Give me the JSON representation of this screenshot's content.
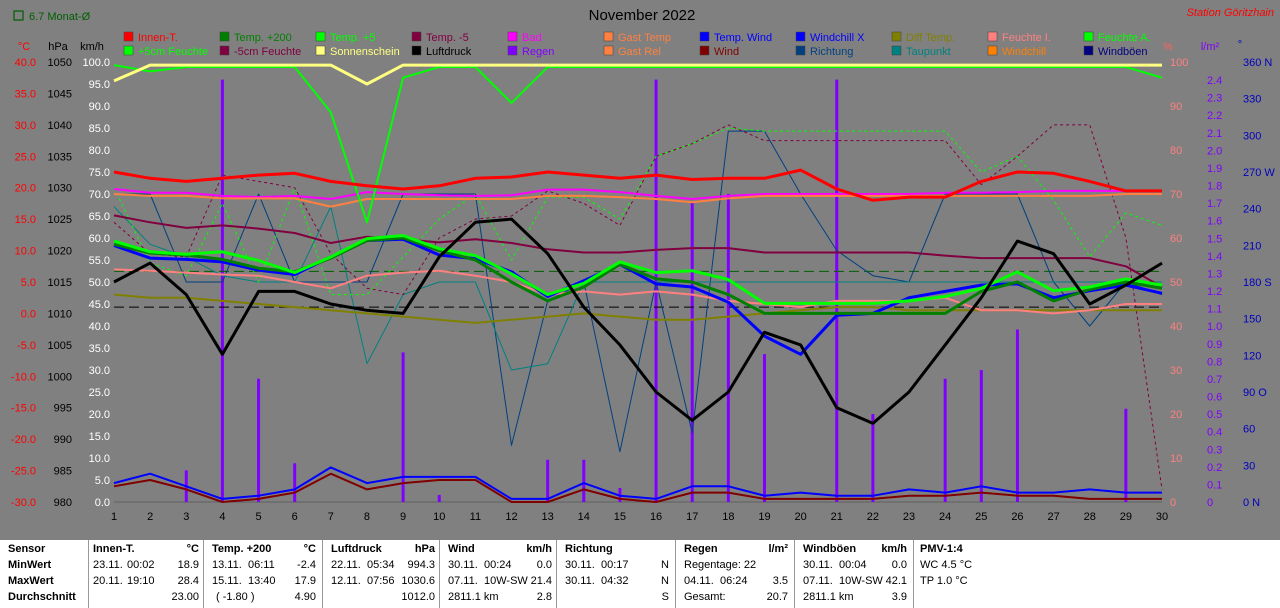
{
  "header": {
    "title": "November 2022",
    "station": "Station Göritzhain",
    "monat_label": "6.7 Monat-Ø"
  },
  "axes": {
    "temp_unit": "°C",
    "pressure_unit": "hPa",
    "wind_unit": "km/h",
    "percent_unit": "%",
    "rain_unit": "l/m²",
    "dir_unit": "°",
    "temp_ticks": [
      "40.0",
      "35.0",
      "30.0",
      "25.0",
      "20.0",
      "15.0",
      "10.0",
      "5.0",
      "0.0",
      "-5.0",
      "-10.0",
      "-15.0",
      "-20.0",
      "-25.0",
      "-30.0"
    ],
    "pressure_ticks": [
      "1050",
      "1045",
      "1040",
      "1035",
      "1030",
      "1025",
      "1020",
      "1015",
      "1010",
      "1005",
      "1000",
      "995",
      "990",
      "985",
      "980"
    ],
    "wind_ticks": [
      "100.0",
      "95.0",
      "90.0",
      "85.0",
      "80.0",
      "75.0",
      "70.0",
      "65.0",
      "60.0",
      "55.0",
      "50.0",
      "45.0",
      "40.0",
      "35.0",
      "30.0",
      "25.0",
      "20.0",
      "15.0",
      "10.0",
      "5.0",
      "0.0"
    ],
    "percent_ticks": [
      "100",
      "90",
      "80",
      "70",
      "60",
      "50",
      "40",
      "30",
      "20",
      "10",
      "0"
    ],
    "rain_ticks": [
      "2.4",
      "2.3",
      "2.2",
      "2.1",
      "2.0",
      "1.9",
      "1.8",
      "1.7",
      "1.6",
      "1.5",
      "1.4",
      "1.3",
      "1.2",
      "1.1",
      "1.0",
      "0.9",
      "0.8",
      "0.7",
      "0.6",
      "0.5",
      "0.4",
      "0.3",
      "0.2",
      "0.1",
      "0"
    ],
    "dir_ticks": [
      "360 N",
      "330",
      "300",
      "270 W",
      "240",
      "210",
      "180 S",
      "150",
      "120",
      "90 O",
      "60",
      "30",
      "0 N"
    ],
    "x_ticks": [
      "1",
      "2",
      "3",
      "4",
      "5",
      "6",
      "7",
      "8",
      "9",
      "10",
      "11",
      "12",
      "13",
      "14",
      "15",
      "16",
      "17",
      "18",
      "19",
      "20",
      "21",
      "22",
      "23",
      "24",
      "25",
      "26",
      "27",
      "28",
      "29",
      "30"
    ]
  },
  "legend": [
    {
      "label": "Innen-T.",
      "color": "#ff0000"
    },
    {
      "label": "Temp. +200",
      "color": "#008000"
    },
    {
      "label": "Temp. +5",
      "color": "#00ff00"
    },
    {
      "label": "Temp. -5",
      "color": "#800040"
    },
    {
      "label": "Bad",
      "color": "#ff00ff"
    },
    {
      "label": "Gast Temp",
      "color": "#ff8040"
    },
    {
      "label": "Temp. Wind",
      "color": "#0000ff"
    },
    {
      "label": "Windchill X",
      "color": "#0000ff"
    },
    {
      "label": "Diff Temp.",
      "color": "#808000"
    },
    {
      "label": "Feuchte I.",
      "color": "#ff8080"
    },
    {
      "label": "Feuchte A.",
      "color": "#00ff00"
    },
    {
      "label": "+5cm Feuchte",
      "color": "#00ff00"
    },
    {
      "label": "-5cm Feuchte",
      "color": "#800040"
    },
    {
      "label": "Sonnenschein",
      "color": "#ffff80"
    },
    {
      "label": "Luftdruck",
      "color": "#000000"
    },
    {
      "label": "Regen",
      "color": "#8000ff"
    },
    {
      "label": "Gast Rel",
      "color": "#ff8040"
    },
    {
      "label": "Wind",
      "color": "#800000"
    },
    {
      "label": "Richtung",
      "color": "#004080"
    },
    {
      "label": "Taupunkt",
      "color": "#008080"
    },
    {
      "label": "Windchill",
      "color": "#ff8000"
    },
    {
      "label": "Windböen",
      "color": "#000080"
    }
  ],
  "chart_data": {
    "type": "line",
    "title": "November 2022",
    "x": [
      1,
      2,
      3,
      4,
      5,
      6,
      7,
      8,
      9,
      10,
      11,
      12,
      13,
      14,
      15,
      16,
      17,
      18,
      19,
      20,
      21,
      22,
      23,
      24,
      25,
      26,
      27,
      28,
      29,
      30
    ],
    "xlim": [
      1,
      30
    ],
    "temp_ylim": [
      -30,
      40
    ],
    "pressure_ylim": [
      980,
      1050
    ],
    "series": [
      {
        "name": "Innen-T.",
        "color": "#ff0000",
        "axis": "temp",
        "width": 3,
        "values": [
          22.5,
          21.5,
          21.0,
          21.5,
          22.0,
          22.3,
          21.0,
          20.3,
          19.8,
          20.3,
          21.5,
          21.7,
          22.5,
          22.0,
          21.5,
          22.0,
          21.3,
          21.5,
          21.5,
          22.8,
          19.8,
          18.0,
          18.5,
          18.5,
          21.0,
          22.5,
          22.3,
          21.0,
          19.5,
          19.5
        ]
      },
      {
        "name": "Bad",
        "color": "#ff00ff",
        "axis": "temp",
        "width": 2,
        "values": [
          19.8,
          19.2,
          19.2,
          18.7,
          18.5,
          18.7,
          18.2,
          19.3,
          19.0,
          18.8,
          18.7,
          18.8,
          19.7,
          19.7,
          19.3,
          18.7,
          18.2,
          18.7,
          19.0,
          19.0,
          19.0,
          19.0,
          19.0,
          19.2,
          19.2,
          19.3,
          19.5,
          19.5,
          19.5,
          19.5
        ]
      },
      {
        "name": "Windchill",
        "color": "#ff8040",
        "axis": "temp",
        "width": 2,
        "values": [
          19.0,
          18.7,
          18.7,
          18.3,
          18.3,
          18.3,
          17.0,
          18.2,
          18.2,
          18.2,
          18.2,
          18.2,
          18.7,
          18.7,
          18.5,
          18.2,
          17.7,
          18.3,
          18.7,
          18.7,
          18.7,
          18.7,
          18.7,
          18.7,
          18.7,
          18.7,
          18.7,
          18.7,
          19.0,
          19.0
        ]
      },
      {
        "name": "Temp. Wind",
        "color": "#0000ff",
        "axis": "temp",
        "width": 3,
        "values": [
          10.8,
          8.8,
          8.6,
          8.2,
          6.9,
          6.2,
          9.0,
          11.6,
          11.8,
          9.3,
          8.7,
          6.6,
          2.7,
          5.2,
          7.8,
          4.7,
          4.2,
          1.8,
          -3.6,
          -6.5,
          -0.3,
          0.0,
          2.5,
          3.5,
          4.5,
          4.7,
          2.5,
          3.6,
          4.5,
          3.2
        ]
      },
      {
        "name": "Temp. +200",
        "color": "#008000",
        "axis": "temp",
        "width": 3,
        "values": [
          11.0,
          9.6,
          9.3,
          8.6,
          7.2,
          6.6,
          8.8,
          11.6,
          12.0,
          10.0,
          8.5,
          5.0,
          2.0,
          4.2,
          7.8,
          5.5,
          5.0,
          3.0,
          0.0,
          0.0,
          0.0,
          0.0,
          0.0,
          0.0,
          3.5,
          5.0,
          2.0,
          3.8,
          5.0,
          4.0
        ]
      },
      {
        "name": "Temp. +5",
        "color": "#00ff00",
        "axis": "temp",
        "width": 3,
        "values": [
          11.5,
          9.8,
          9.4,
          9.8,
          8.4,
          6.5,
          9.0,
          11.9,
          12.4,
          10.3,
          9.2,
          6.3,
          3.0,
          4.8,
          8.2,
          6.5,
          6.8,
          5.4,
          1.6,
          1.6,
          1.6,
          1.6,
          2.0,
          2.7,
          4.0,
          6.6,
          3.6,
          4.2,
          5.5,
          4.5
        ]
      },
      {
        "name": "Diff Temp.",
        "color": "#808000",
        "axis": "temp",
        "width": 2,
        "values": [
          3.0,
          2.5,
          2.5,
          2.0,
          1.5,
          1.0,
          0.5,
          0.0,
          -0.5,
          -1.0,
          -1.5,
          -1.0,
          -0.5,
          0.0,
          -0.5,
          -1.0,
          -1.0,
          -0.5,
          0.0,
          0.5,
          1.0,
          1.0,
          0.5,
          0.5,
          0.5,
          0.5,
          0.5,
          0.5,
          0.5,
          0.5
        ]
      },
      {
        "name": "Temp. -5",
        "color": "#800040",
        "axis": "temp",
        "width": 2,
        "values": [
          15.6,
          14.5,
          13.6,
          14.0,
          13.5,
          12.8,
          11.2,
          12.2,
          11.8,
          11.3,
          11.8,
          11.2,
          10.2,
          9.7,
          9.7,
          10.1,
          10.4,
          10.4,
          9.7,
          9.7,
          9.7,
          9.7,
          9.7,
          9.2,
          8.8,
          8.8,
          8.8,
          8.8,
          7.5,
          4.2
        ]
      },
      {
        "name": "Luftdruck",
        "color": "#000000",
        "axis": "pressure",
        "width": 3,
        "values": [
          1015.0,
          1018.0,
          1013.0,
          1003.5,
          1013.5,
          1013.5,
          1011.5,
          1010.5,
          1010.0,
          1019.0,
          1024.5,
          1025.0,
          1019.5,
          1011.0,
          1005.0,
          997.5,
          993.0,
          997.5,
          1007.0,
          1005.0,
          995.0,
          992.5,
          997.5,
          1005.0,
          1012.5,
          1021.5,
          1019.5,
          1011.5,
          1014.5,
          1018.0
        ]
      },
      {
        "name": "Sonnenschein",
        "color": "#ffff80",
        "axis": "temp",
        "width": 3,
        "values": [
          37.0,
          39.5,
          39.5,
          39.5,
          39.5,
          39.5,
          39.5,
          36.5,
          39.5,
          39.5,
          39.5,
          39.5,
          39.5,
          39.5,
          39.5,
          39.5,
          39.5,
          39.5,
          39.5,
          39.5,
          39.5,
          39.5,
          39.5,
          39.5,
          39.5,
          39.5,
          39.5,
          39.5,
          39.5,
          39.5
        ]
      },
      {
        "name": "Feuchte A.",
        "color": "#00ff00",
        "axis": "temp",
        "width": 2,
        "values": [
          39.5,
          38.5,
          39.2,
          39.2,
          39.2,
          39.2,
          32.0,
          14.5,
          37.5,
          39.2,
          39.2,
          33.5,
          39.2,
          39.2,
          39.2,
          39.2,
          39.2,
          39.2,
          39.2,
          39.2,
          39.2,
          39.2,
          39.2,
          39.2,
          39.2,
          39.2,
          39.2,
          39.2,
          39.2,
          37.5
        ]
      },
      {
        "name": "Richtung",
        "color": "#004080",
        "axis": "temp",
        "width": 1,
        "values": [
          19.0,
          19.0,
          5.0,
          5.0,
          19.0,
          5.0,
          5.0,
          5.0,
          19.0,
          19.0,
          19.0,
          -21.0,
          2.0,
          5.0,
          -22.0,
          5.0,
          -19.0,
          29.0,
          29.0,
          19.0,
          10.0,
          6.0,
          5.0,
          19.0,
          19.0,
          19.0,
          5.0,
          -2.0,
          5.0,
          3.0
        ]
      },
      {
        "name": "Taupunkt",
        "color": "#008080",
        "axis": "temp",
        "width": 1,
        "values": [
          17.0,
          11.0,
          9.0,
          6.0,
          5.0,
          5.0,
          17.0,
          -8.0,
          3.0,
          5.0,
          5.0,
          -9.0,
          -8.0,
          5.0,
          5.0,
          5.0,
          5.0,
          5.0,
          5.0,
          5.0,
          5.0,
          5.0,
          5.0,
          5.0,
          5.0,
          5.0,
          5.0,
          5.0,
          5.0,
          5.0
        ]
      },
      {
        "name": "Feuchte I.",
        "color": "#ff8080",
        "axis": "temp",
        "width": 2,
        "values": [
          7.0,
          6.8,
          6.5,
          6.2,
          6.0,
          5.0,
          4.0,
          6.0,
          6.5,
          6.8,
          6.0,
          5.0,
          3.0,
          3.5,
          3.0,
          3.5,
          3.0,
          2.0,
          1.5,
          1.0,
          2.0,
          2.0,
          2.0,
          2.5,
          0.5,
          0.5,
          0.0,
          0.5,
          1.5,
          1.5
        ]
      },
      {
        "name": "+5cm Feuchte",
        "color": "#00ff00",
        "axis": "temp",
        "width": 1,
        "dashed": true,
        "values": [
          20.0,
          8.0,
          6.0,
          17.5,
          5.0,
          20.0,
          3.0,
          3.0,
          9.0,
          15.0,
          19.0,
          8.5,
          18.5,
          18.5,
          15.0,
          25.0,
          27.0,
          29.5,
          29.0,
          29.0,
          29.0,
          29.0,
          29.0,
          29.0,
          22.5,
          25.0,
          18.0,
          9.0,
          16.0,
          14.0
        ]
      },
      {
        "name": "-5cm Feuchte",
        "color": "#800040",
        "axis": "temp",
        "width": 1,
        "dashed": true,
        "values": [
          14.5,
          9.5,
          9.0,
          22.0,
          21.0,
          20.0,
          9.5,
          4.0,
          3.0,
          12.0,
          15.0,
          15.5,
          19.5,
          17.5,
          14.0,
          25.0,
          27.0,
          30.0,
          27.5,
          27.5,
          27.5,
          27.5,
          27.5,
          27.5,
          20.5,
          25.0,
          30.0,
          30.0,
          12.0,
          -28.0
        ]
      },
      {
        "name": "Wind",
        "color": "#800000",
        "axis": "temp",
        "width": 2,
        "values": [
          -27.5,
          -26.5,
          -28.0,
          -30.0,
          -29.5,
          -28.5,
          -25.5,
          -28.0,
          -27.0,
          -26.5,
          -26.5,
          -30.0,
          -30.0,
          -28.0,
          -29.5,
          -30.0,
          -28.5,
          -28.5,
          -29.5,
          -29.5,
          -29.5,
          -29.5,
          -29.0,
          -29.0,
          -28.5,
          -29.0,
          -29.0,
          -29.5,
          -29.5,
          -29.5
        ]
      },
      {
        "name": "Windböen",
        "color": "#0000ff",
        "axis": "temp",
        "width": 2,
        "values": [
          -27.0,
          -25.5,
          -27.5,
          -29.5,
          -29.0,
          -28.0,
          -24.5,
          -27.0,
          -26.0,
          -26.0,
          -26.0,
          -29.5,
          -29.5,
          -27.0,
          -29.0,
          -29.5,
          -27.5,
          -27.5,
          -29.0,
          -28.5,
          -29.0,
          -29.0,
          -28.0,
          -28.5,
          -27.5,
          -28.5,
          -28.5,
          -28.0,
          -28.5,
          -28.5
        ]
      }
    ],
    "rain": {
      "name": "Regen",
      "color": "#8000ff",
      "values": [
        0,
        0,
        0.18,
        2.4,
        0.7,
        0.22,
        0,
        0,
        0.85,
        0.04,
        0,
        0,
        0.24,
        0.24,
        0.08,
        2.4,
        1.7,
        1.75,
        0.84,
        0,
        2.4,
        0.5,
        0,
        0.7,
        0.75,
        0.98,
        0,
        0,
        0.53,
        0
      ]
    },
    "reference_lines": [
      {
        "name": "6.7 Monat-Ø",
        "color": "#006000",
        "axis": "temp",
        "value": 6.7,
        "dashed": true
      },
      {
        "name": "Ø",
        "color": "#000000",
        "axis": "temp",
        "value": 1.0,
        "dashed": true
      }
    ],
    "xlabel": "",
    "ylabel": ""
  },
  "stats": {
    "labels": [
      "Sensor",
      "MinWert",
      "MaxWert",
      "Durchschnitt"
    ],
    "innen": {
      "title": "Innen-T.",
      "unit": "°C",
      "min_date": "23.11.",
      "min_time": "00:02",
      "min_val": "18.9",
      "max_date": "20.11.",
      "max_time": "19:10",
      "max_val": "28.4",
      "avg": "23.00"
    },
    "temp": {
      "title": "Temp. +200",
      "unit": "°C",
      "min_date": "13.11.",
      "min_time": "06:11",
      "min_val": "-2.4",
      "max_date": "15.11.",
      "max_time": "13:40",
      "max_val": "17.9",
      "avg_note": "( -1.80 )",
      "avg": "4.90"
    },
    "press": {
      "title": "Luftdruck",
      "unit": "hPa",
      "min_date": "22.11.",
      "min_time": "05:34",
      "min_val": "994.3",
      "max_date": "12.11.",
      "max_time": "07:56",
      "max_val": "1030.6",
      "avg": "1012.0"
    },
    "wind": {
      "title": "Wind",
      "unit": "km/h",
      "min_date": "30.11.",
      "min_time": "00:24",
      "min_val": "0.0",
      "max_date": "07.11.",
      "max_time": "10W-SW",
      "max_val": "21.4",
      "avg_km": "2811.1 km",
      "avg": "2.8"
    },
    "dir": {
      "title": "Richtung",
      "min_date": "30.11.",
      "min_time": "00:17",
      "min_val": "N",
      "max_date": "30.11.",
      "max_time": "04:32",
      "max_val": "N",
      "avg": "S"
    },
    "rain": {
      "title": "Regen",
      "unit": "l/m²",
      "days_label": "Regentage: 22",
      "max_date": "04.11.",
      "max_time": "06:24",
      "max_val": "3.5",
      "sum_label": "Gesamt:",
      "sum": "20.7"
    },
    "gust": {
      "title": "Windböen",
      "unit": "km/h",
      "min_date": "30.11.",
      "min_time": "00:04",
      "min_val": "0.0",
      "max_date": "07.11.",
      "max_time": "10W-SW",
      "max_val": "42.1",
      "avg_km": "2811.1 km",
      "avg": "3.9"
    },
    "pmv": {
      "title": "PMV-1:4",
      "wc": "WC 4.5 °C",
      "tp": "TP 1.0 °C"
    }
  }
}
